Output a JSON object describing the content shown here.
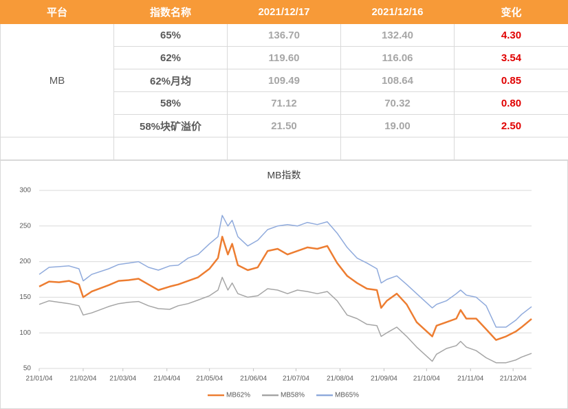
{
  "table": {
    "header": [
      "平台",
      "指数名称",
      "2021/12/17",
      "2021/12/16",
      "变化"
    ],
    "platform": "MB",
    "rows": [
      [
        "65%",
        "136.70",
        "132.40",
        "4.30"
      ],
      [
        "62%",
        "119.60",
        "116.06",
        "3.54"
      ],
      [
        "62%月均",
        "109.49",
        "108.64",
        "0.85"
      ],
      [
        "58%",
        "71.12",
        "70.32",
        "0.80"
      ],
      [
        "58%块矿溢价",
        "21.50",
        "19.00",
        "2.50"
      ]
    ]
  },
  "chart_data": {
    "type": "line",
    "title": "MB指数",
    "x": [
      "2021-01-04",
      "2021-01-11",
      "2021-01-18",
      "2021-01-25",
      "2021-02-01",
      "2021-02-04",
      "2021-02-10",
      "2021-02-22",
      "2021-03-01",
      "2021-03-08",
      "2021-03-15",
      "2021-03-22",
      "2021-03-29",
      "2021-04-06",
      "2021-04-12",
      "2021-04-19",
      "2021-04-26",
      "2021-05-04",
      "2021-05-10",
      "2021-05-13",
      "2021-05-17",
      "2021-05-20",
      "2021-05-24",
      "2021-05-31",
      "2021-06-07",
      "2021-06-14",
      "2021-06-21",
      "2021-06-28",
      "2021-07-05",
      "2021-07-12",
      "2021-07-19",
      "2021-07-26",
      "2021-08-02",
      "2021-08-09",
      "2021-08-16",
      "2021-08-23",
      "2021-08-30",
      "2021-09-02",
      "2021-09-06",
      "2021-09-13",
      "2021-09-20",
      "2021-09-27",
      "2021-10-08",
      "2021-10-11",
      "2021-10-18",
      "2021-10-25",
      "2021-10-28",
      "2021-11-01",
      "2021-11-08",
      "2021-11-15",
      "2021-11-22",
      "2021-11-29",
      "2021-12-06",
      "2021-12-10",
      "2021-12-17"
    ],
    "series": [
      {
        "name": "MB62%",
        "color": "#ed7d31",
        "width": 2.5,
        "values": [
          165,
          172,
          171,
          173,
          168,
          150,
          158,
          167,
          173,
          174,
          176,
          168,
          160,
          165,
          168,
          173,
          178,
          190,
          205,
          235,
          210,
          225,
          195,
          188,
          192,
          215,
          218,
          210,
          215,
          220,
          218,
          222,
          198,
          180,
          170,
          162,
          160,
          135,
          145,
          155,
          140,
          115,
          95,
          110,
          115,
          120,
          132,
          120,
          120,
          105,
          90,
          95,
          102,
          108,
          119.6
        ]
      },
      {
        "name": "MB58%",
        "color": "#a5a5a5",
        "width": 1.5,
        "values": [
          140,
          145,
          143,
          141,
          138,
          125,
          128,
          137,
          141,
          143,
          144,
          138,
          134,
          133,
          138,
          141,
          146,
          152,
          160,
          178,
          160,
          170,
          155,
          150,
          152,
          162,
          160,
          155,
          160,
          158,
          155,
          158,
          145,
          125,
          120,
          112,
          110,
          95,
          100,
          108,
          95,
          80,
          60,
          70,
          78,
          82,
          88,
          80,
          75,
          65,
          58,
          58,
          62,
          66,
          71.12
        ]
      },
      {
        "name": "MB65%",
        "color": "#8faadc",
        "width": 1.5,
        "values": [
          182,
          192,
          193,
          194,
          190,
          173,
          182,
          190,
          196,
          198,
          200,
          192,
          188,
          194,
          195,
          205,
          210,
          225,
          235,
          265,
          250,
          258,
          235,
          222,
          230,
          245,
          250,
          252,
          250,
          255,
          252,
          256,
          240,
          220,
          205,
          198,
          190,
          170,
          175,
          180,
          168,
          155,
          135,
          140,
          145,
          155,
          160,
          153,
          150,
          138,
          108,
          108,
          118,
          126,
          136.7
        ]
      }
    ],
    "xlim": [
      "2021-01-04",
      "2021-12-17"
    ],
    "xticks": [
      {
        "value": "2021-01-04",
        "label": "21/01/04"
      },
      {
        "value": "2021-02-04",
        "label": "21/02/04"
      },
      {
        "value": "2021-03-04",
        "label": "21/03/04"
      },
      {
        "value": "2021-04-04",
        "label": "21/04/04"
      },
      {
        "value": "2021-05-04",
        "label": "21/05/04"
      },
      {
        "value": "2021-06-04",
        "label": "21/06/04"
      },
      {
        "value": "2021-07-04",
        "label": "21/07/04"
      },
      {
        "value": "2021-08-04",
        "label": "21/08/04"
      },
      {
        "value": "2021-09-04",
        "label": "21/09/04"
      },
      {
        "value": "2021-10-04",
        "label": "21/10/04"
      },
      {
        "value": "2021-11-04",
        "label": "21/11/04"
      },
      {
        "value": "2021-12-04",
        "label": "21/12/04"
      }
    ],
    "ylim": [
      50,
      300
    ],
    "yticks": [
      50,
      100,
      150,
      200,
      250,
      300
    ],
    "grid": true,
    "legend": "bottom"
  }
}
